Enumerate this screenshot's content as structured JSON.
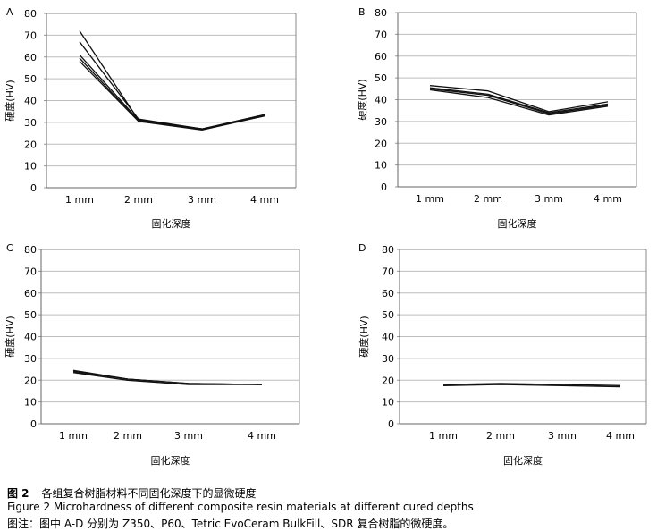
{
  "chart_data": [
    {
      "type": "line",
      "label": "A",
      "categories": [
        "1 mm",
        "2 mm",
        "3 mm",
        "4 mm"
      ],
      "ylabel": "硬度(HV)",
      "xlabel": "固化深度",
      "ylim": [
        0,
        80
      ],
      "yticks": [
        0,
        10,
        20,
        30,
        40,
        50,
        60,
        70,
        80
      ],
      "grid": true,
      "series": [
        {
          "values": [
            72,
            31,
            27,
            33.5
          ]
        },
        {
          "values": [
            67,
            31.5,
            27,
            33.5
          ]
        },
        {
          "values": [
            61,
            31,
            27,
            33
          ]
        },
        {
          "values": [
            59.5,
            30.5,
            26.5,
            33
          ]
        },
        {
          "values": [
            58,
            30.5,
            27,
            33
          ]
        }
      ]
    },
    {
      "type": "line",
      "label": "B",
      "categories": [
        "1 mm",
        "2 mm",
        "3 mm",
        "4 mm"
      ],
      "ylabel": "硬度(HV)",
      "xlabel": "固化深度",
      "ylim": [
        0,
        80
      ],
      "yticks": [
        0,
        10,
        20,
        30,
        40,
        50,
        60,
        70,
        80
      ],
      "grid": true,
      "series": [
        {
          "values": [
            46.5,
            44,
            34.5,
            39
          ]
        },
        {
          "values": [
            45.5,
            42.5,
            34,
            38
          ]
        },
        {
          "values": [
            45,
            42,
            33.5,
            37.5
          ]
        },
        {
          "values": [
            44.5,
            41,
            33,
            37
          ]
        }
      ]
    },
    {
      "type": "line",
      "label": "C",
      "categories": [
        "1 mm",
        "2 mm",
        "3 mm",
        "4 mm"
      ],
      "ylabel": "硬度(HV)",
      "xlabel": "固化深度",
      "ylim": [
        0,
        80
      ],
      "yticks": [
        0,
        10,
        20,
        30,
        40,
        50,
        60,
        70,
        80
      ],
      "grid": true,
      "series": [
        {
          "values": [
            24.5,
            20.5,
            18.5,
            18
          ]
        },
        {
          "values": [
            24,
            20.5,
            18.5,
            18
          ]
        },
        {
          "values": [
            23.5,
            20,
            18,
            18
          ]
        }
      ]
    },
    {
      "type": "line",
      "label": "D",
      "categories": [
        "1 mm",
        "2 mm",
        "3 mm",
        "4 mm"
      ],
      "ylabel": "硬度(HV)",
      "xlabel": "固化深度",
      "ylim": [
        0,
        80
      ],
      "yticks": [
        0,
        10,
        20,
        30,
        40,
        50,
        60,
        70,
        80
      ],
      "grid": true,
      "series": [
        {
          "values": [
            18,
            18.5,
            18,
            17.5
          ]
        },
        {
          "values": [
            17.5,
            18,
            17.5,
            17
          ]
        }
      ]
    }
  ],
  "caption": {
    "fig_cn": "图 2",
    "title_cn": "各组复合树脂材料不同固化深度下的显微硬度",
    "title_en": "Figure 2   Microhardness of different composite resin materials at different cured depths",
    "note": "图注：图中 A-D 分别为 Z350、P60、Tetric EvoCeram BulkFill、SDR 复合树脂的微硬度。"
  }
}
